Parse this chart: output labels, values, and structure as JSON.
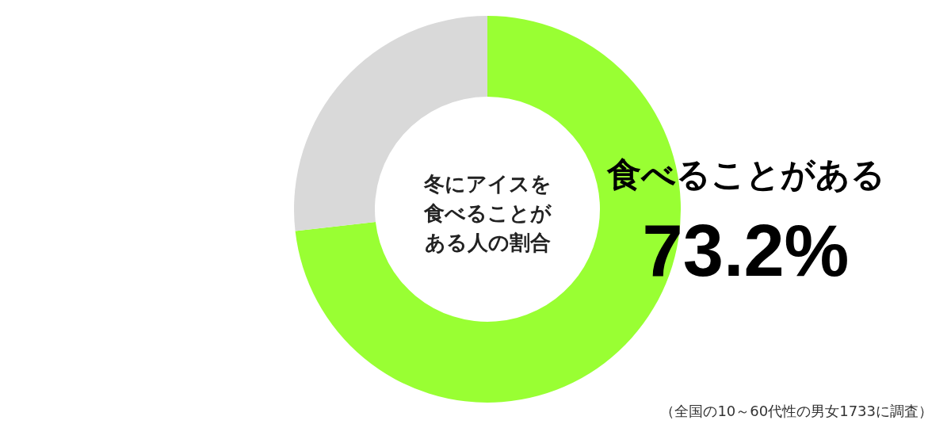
{
  "chart_data": {
    "type": "donut",
    "title": "冬にアイスを食べることがある人の割合",
    "categories": [
      "食べることがある",
      null
    ],
    "values": [
      73.2,
      26.8
    ],
    "colors": [
      "#99ff33",
      "#d9d9d9"
    ],
    "value_labels": [
      "73.2%",
      null
    ],
    "annotations": [
      "（全国の10～60代性の男女1733に調査）"
    ]
  }
}
